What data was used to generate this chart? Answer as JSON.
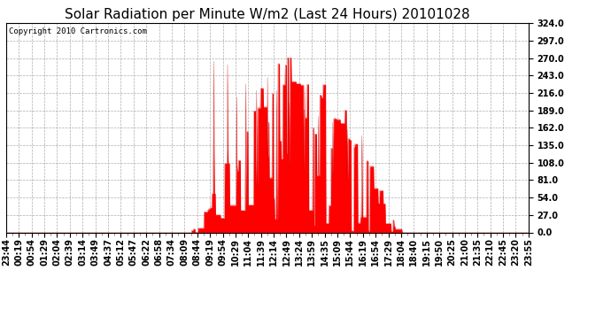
{
  "title": "Solar Radiation per Minute W/m2 (Last 24 Hours) 20101028",
  "copyright": "Copyright 2010 Cartronics.com",
  "y_ticks": [
    0.0,
    27.0,
    54.0,
    81.0,
    108.0,
    135.0,
    162.0,
    189.0,
    216.0,
    243.0,
    270.0,
    297.0,
    324.0
  ],
  "ylim": [
    0.0,
    324.0
  ],
  "fill_color": "#FF0000",
  "line_color": "#CC0000",
  "background_color": "#FFFFFF",
  "grid_color": "#999999",
  "border_color": "#000000",
  "x_labels": [
    "23:44",
    "00:19",
    "00:54",
    "01:29",
    "02:04",
    "02:39",
    "03:14",
    "03:49",
    "04:37",
    "05:12",
    "05:47",
    "06:22",
    "06:58",
    "07:34",
    "08:09",
    "08:44",
    "09:19",
    "09:54",
    "10:29",
    "11:04",
    "11:39",
    "12:14",
    "12:49",
    "13:24",
    "13:59",
    "14:35",
    "15:09",
    "15:44",
    "16:19",
    "16:54",
    "17:29",
    "18:04",
    "18:40",
    "19:15",
    "19:50",
    "20:25",
    "21:00",
    "21:35",
    "22:10",
    "22:45",
    "23:20",
    "23:55"
  ],
  "num_points": 1440,
  "title_fontsize": 11,
  "copyright_fontsize": 6.5,
  "tick_fontsize": 7
}
